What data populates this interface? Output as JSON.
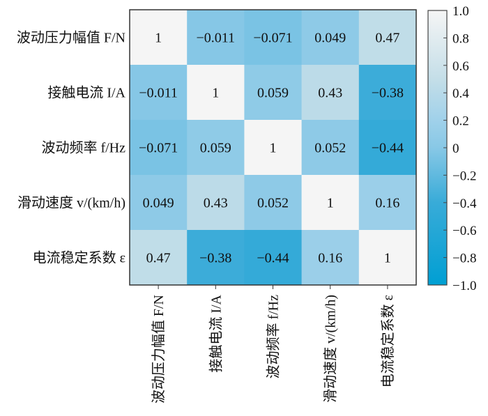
{
  "chart_data": {
    "type": "heatmap",
    "title": "",
    "row_labels": [
      "波动压力幅值 F/N",
      "接触电流 I/A",
      "波动频率 f/Hz",
      "滑动速度 v/(km/h)",
      "电流稳定系数 ε"
    ],
    "col_labels": [
      "波动压力幅值 F/N",
      "接触电流 I/A",
      "波动频率 f/Hz",
      "滑动速度 v/(km/h)",
      "电流稳定系数 ε"
    ],
    "values": [
      [
        1,
        -0.011,
        -0.071,
        0.049,
        0.47
      ],
      [
        -0.011,
        1,
        0.059,
        0.43,
        -0.38
      ],
      [
        -0.071,
        0.059,
        1,
        0.052,
        -0.44
      ],
      [
        0.049,
        0.43,
        0.052,
        1,
        0.16
      ],
      [
        0.47,
        -0.38,
        -0.44,
        0.16,
        1
      ]
    ],
    "value_labels": [
      [
        "1",
        "−0.011",
        "−0.071",
        "0.049",
        "0.47"
      ],
      [
        "−0.011",
        "1",
        "0.059",
        "0.43",
        "−0.38"
      ],
      [
        "−0.071",
        "0.059",
        "1",
        "0.052",
        "−0.44"
      ],
      [
        "0.049",
        "0.43",
        "0.052",
        "1",
        "0.16"
      ],
      [
        "0.47",
        "−0.38",
        "−0.44",
        "0.16",
        "1"
      ]
    ],
    "colorbar": {
      "range": [
        -1,
        1
      ],
      "ticks": [
        "1.0",
        "0.8",
        "0.6",
        "0.4",
        "0.2",
        "0",
        "−0.2",
        "−0.4",
        "−0.6",
        "−0.8",
        "−1.0"
      ],
      "tick_values": [
        1,
        0.8,
        0.6,
        0.4,
        0.2,
        0,
        -0.2,
        -0.4,
        -0.6,
        -0.8,
        -1
      ],
      "colors": [
        {
          "v": -1,
          "c": "#009fd3"
        },
        {
          "v": -0.4,
          "c": "#38abd8"
        },
        {
          "v": 0,
          "c": "#88c8e6"
        },
        {
          "v": 0.2,
          "c": "#a0d1ea"
        },
        {
          "v": 0.5,
          "c": "#c4dee8"
        },
        {
          "v": 1,
          "c": "#f5f5f5"
        }
      ]
    }
  }
}
